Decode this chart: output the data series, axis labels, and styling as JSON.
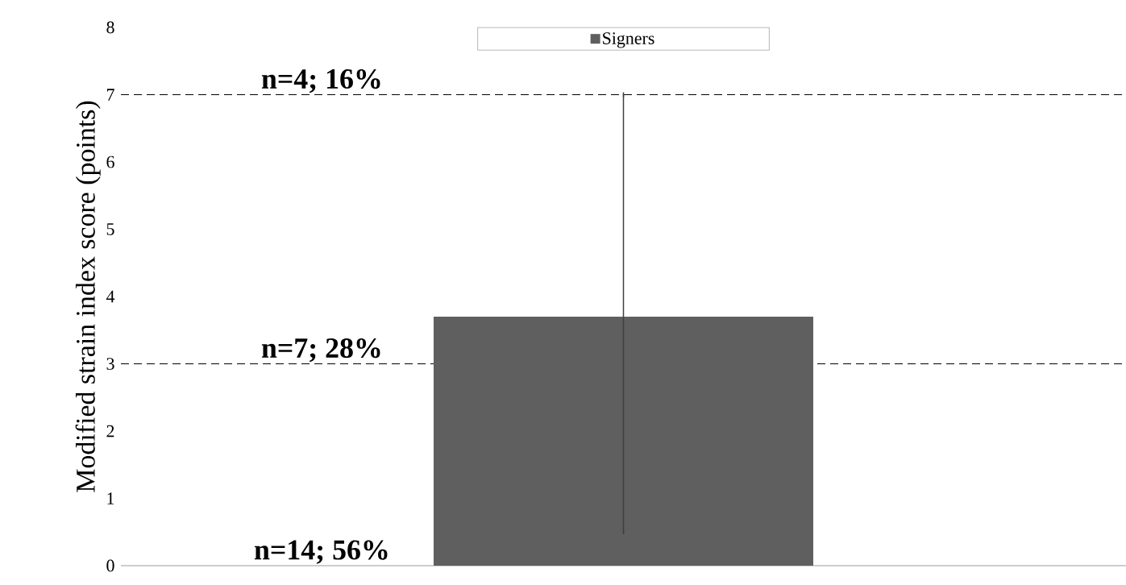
{
  "chart_data": {
    "type": "bar",
    "ylabel": "Modified strain index score (points)",
    "categories": [
      null
    ],
    "series": [
      {
        "name": "Signers",
        "color": "#5f5f5f",
        "values": [
          3.7
        ],
        "errors": [
          [
            0.5,
            7.0
          ]
        ]
      }
    ],
    "ylim": [
      0,
      8
    ],
    "yticks": [
      0,
      1,
      2,
      3,
      4,
      5,
      6,
      7,
      8
    ],
    "ref_lines": [
      {
        "axis": "y",
        "value": 7,
        "color": "#000000",
        "line_style": "dashed"
      },
      {
        "axis": "y",
        "value": 3,
        "color": "#000000",
        "line_style": "dashed"
      }
    ],
    "annotations": [
      "n=4; 16%",
      "n=7; 28%",
      "n=14; 56%"
    ],
    "legend": "top"
  }
}
